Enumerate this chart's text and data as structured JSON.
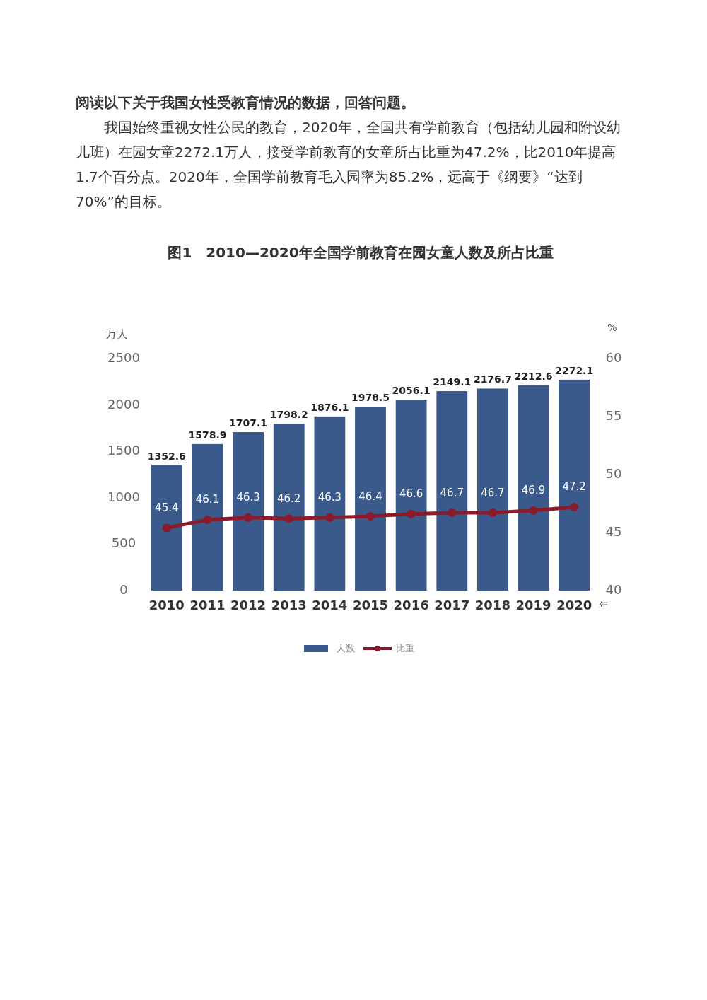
{
  "chart_data": {
    "type": "bar",
    "title": "图1　2010—2020年全国学前教育在园女童人数及所占比重",
    "annotations": [
      "阅读以下关于我国女性受教育情况的数据，回答问题。",
      "我国始终重视女性公民的教育，2020年，全国共有学前教育（包括幼儿园和附设幼儿班）在园女童2272.1万人，接受学前教育的女童所占比重为47.2%，比2010年提高1.7个百分点。2020年，全国学前教育毛入园率为85.2%，远高于《纲要》“达到70%”的目标。"
    ],
    "categories": [
      "2010",
      "2011",
      "2012",
      "2013",
      "2014",
      "2015",
      "2016",
      "2017",
      "2018",
      "2019",
      "2020"
    ],
    "xlabel": "年",
    "ylabel": "万人",
    "y2label": "%",
    "ylim": [
      0,
      2500
    ],
    "yticks": [
      0,
      500,
      1000,
      1500,
      2000,
      2500
    ],
    "y2lim": [
      40,
      60
    ],
    "y2ticks": [
      40,
      45,
      50,
      55,
      60
    ],
    "series": [
      {
        "name": "人数",
        "color": "#3a5a8c",
        "values": [
          1352.6,
          1578.9,
          1707.1,
          1798.2,
          1876.1,
          1978.5,
          2056.1,
          2149.1,
          2176.7,
          2212.6,
          2272.1
        ]
      },
      {
        "name": "比重",
        "type": "line",
        "axis": "y2",
        "color": "#8b1a2b",
        "values": [
          45.4,
          46.1,
          46.3,
          46.2,
          46.3,
          46.4,
          46.6,
          46.7,
          46.7,
          46.9,
          47.2
        ]
      }
    ],
    "marker": "circle",
    "data_labels": true,
    "legend": "bottom",
    "grid": false
  }
}
